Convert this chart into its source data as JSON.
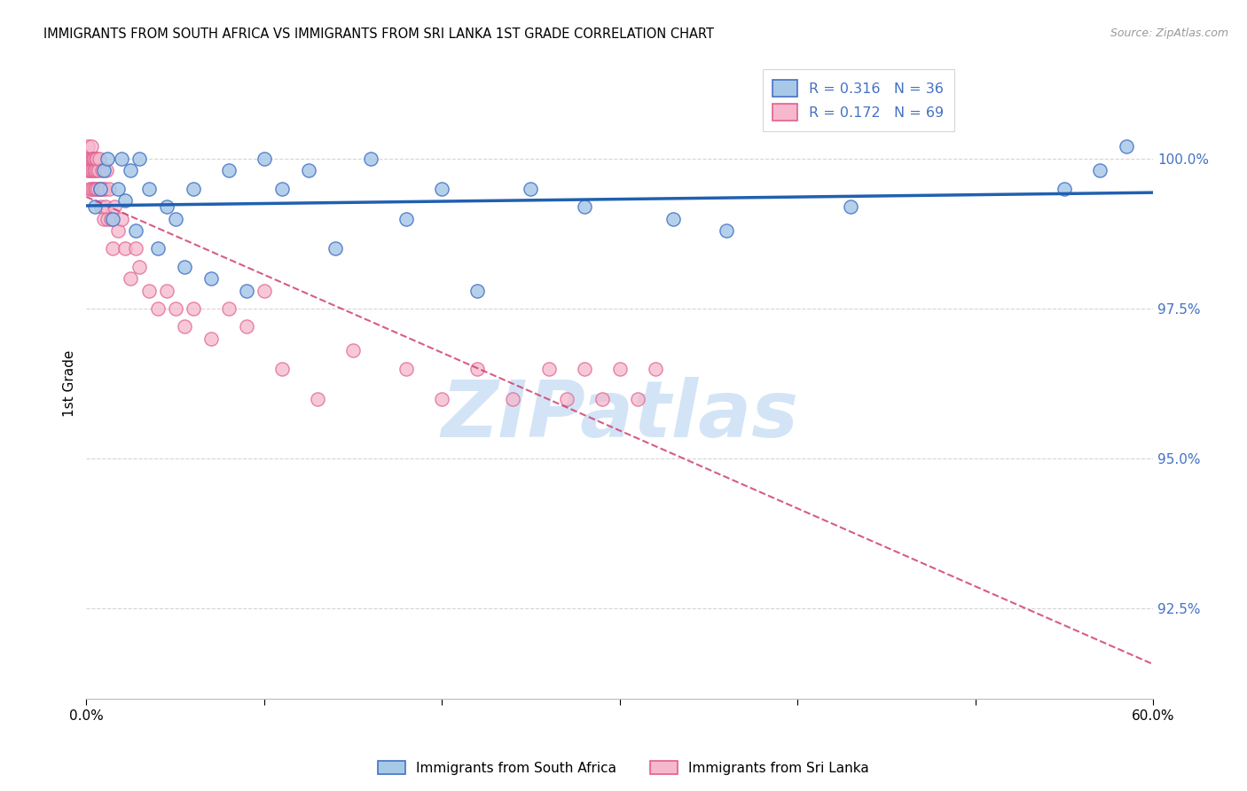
{
  "title": "IMMIGRANTS FROM SOUTH AFRICA VS IMMIGRANTS FROM SRI LANKA 1ST GRADE CORRELATION CHART",
  "source": "Source: ZipAtlas.com",
  "ylabel": "1st Grade",
  "xlim": [
    0.0,
    60.0
  ],
  "ylim": [
    91.0,
    101.5
  ],
  "yticks": [
    92.5,
    95.0,
    97.5,
    100.0
  ],
  "ytick_labels": [
    "92.5%",
    "95.0%",
    "97.5%",
    "100.0%"
  ],
  "legend_text_blue": "R = 0.316   N = 36",
  "legend_text_pink": "R = 0.172   N = 69",
  "legend_label_blue": "Immigrants from South Africa",
  "legend_label_pink": "Immigrants from Sri Lanka",
  "blue_fill": "#a8c8e8",
  "blue_edge": "#4472c4",
  "blue_line": "#2060b0",
  "pink_fill": "#f5b8cc",
  "pink_edge": "#e06090",
  "pink_line": "#d04070",
  "watermark_text": "ZIPatlas",
  "watermark_color": "#cce0f5",
  "grid_color": "#d0d0d0",
  "background": "#ffffff",
  "blue_scatter_x": [
    0.5,
    0.8,
    1.0,
    1.2,
    1.5,
    1.8,
    2.0,
    2.2,
    2.5,
    2.8,
    3.0,
    3.5,
    4.0,
    4.5,
    5.0,
    5.5,
    6.0,
    7.0,
    8.0,
    9.0,
    10.0,
    11.0,
    12.5,
    14.0,
    16.0,
    18.0,
    20.0,
    22.0,
    25.0,
    28.0,
    33.0,
    36.0,
    43.0,
    55.0,
    57.0,
    58.5
  ],
  "blue_scatter_y": [
    99.2,
    99.5,
    99.8,
    100.0,
    99.0,
    99.5,
    100.0,
    99.3,
    99.8,
    98.8,
    100.0,
    99.5,
    98.5,
    99.2,
    99.0,
    98.2,
    99.5,
    98.0,
    99.8,
    97.8,
    100.0,
    99.5,
    99.8,
    98.5,
    100.0,
    99.0,
    99.5,
    97.8,
    99.5,
    99.2,
    99.0,
    98.8,
    99.2,
    99.5,
    99.8,
    100.2
  ],
  "pink_scatter_x": [
    0.05,
    0.08,
    0.1,
    0.12,
    0.15,
    0.18,
    0.2,
    0.22,
    0.25,
    0.28,
    0.3,
    0.32,
    0.35,
    0.38,
    0.4,
    0.42,
    0.45,
    0.48,
    0.5,
    0.52,
    0.55,
    0.58,
    0.6,
    0.65,
    0.7,
    0.75,
    0.8,
    0.85,
    0.9,
    0.95,
    1.0,
    1.05,
    1.1,
    1.15,
    1.2,
    1.3,
    1.4,
    1.5,
    1.6,
    1.8,
    2.0,
    2.2,
    2.5,
    2.8,
    3.0,
    3.5,
    4.0,
    4.5,
    5.0,
    5.5,
    6.0,
    7.0,
    8.0,
    9.0,
    10.0,
    11.0,
    13.0,
    15.0,
    18.0,
    20.0,
    22.0,
    24.0,
    26.0,
    27.0,
    28.0,
    29.0,
    30.0,
    31.0,
    32.0
  ],
  "pink_scatter_y": [
    100.0,
    99.8,
    100.2,
    100.0,
    99.8,
    100.0,
    99.5,
    100.0,
    99.8,
    100.2,
    99.5,
    100.0,
    99.8,
    100.0,
    99.5,
    99.8,
    100.0,
    99.5,
    99.8,
    100.0,
    99.5,
    99.8,
    100.0,
    99.5,
    99.8,
    100.0,
    99.5,
    99.2,
    99.8,
    99.5,
    99.0,
    99.5,
    99.2,
    99.8,
    99.0,
    99.5,
    99.0,
    98.5,
    99.2,
    98.8,
    99.0,
    98.5,
    98.0,
    98.5,
    98.2,
    97.8,
    97.5,
    97.8,
    97.5,
    97.2,
    97.5,
    97.0,
    97.5,
    97.2,
    97.8,
    96.5,
    96.0,
    96.8,
    96.5,
    96.0,
    96.5,
    96.0,
    96.5,
    96.0,
    96.5,
    96.0,
    96.5,
    96.0,
    96.5
  ]
}
